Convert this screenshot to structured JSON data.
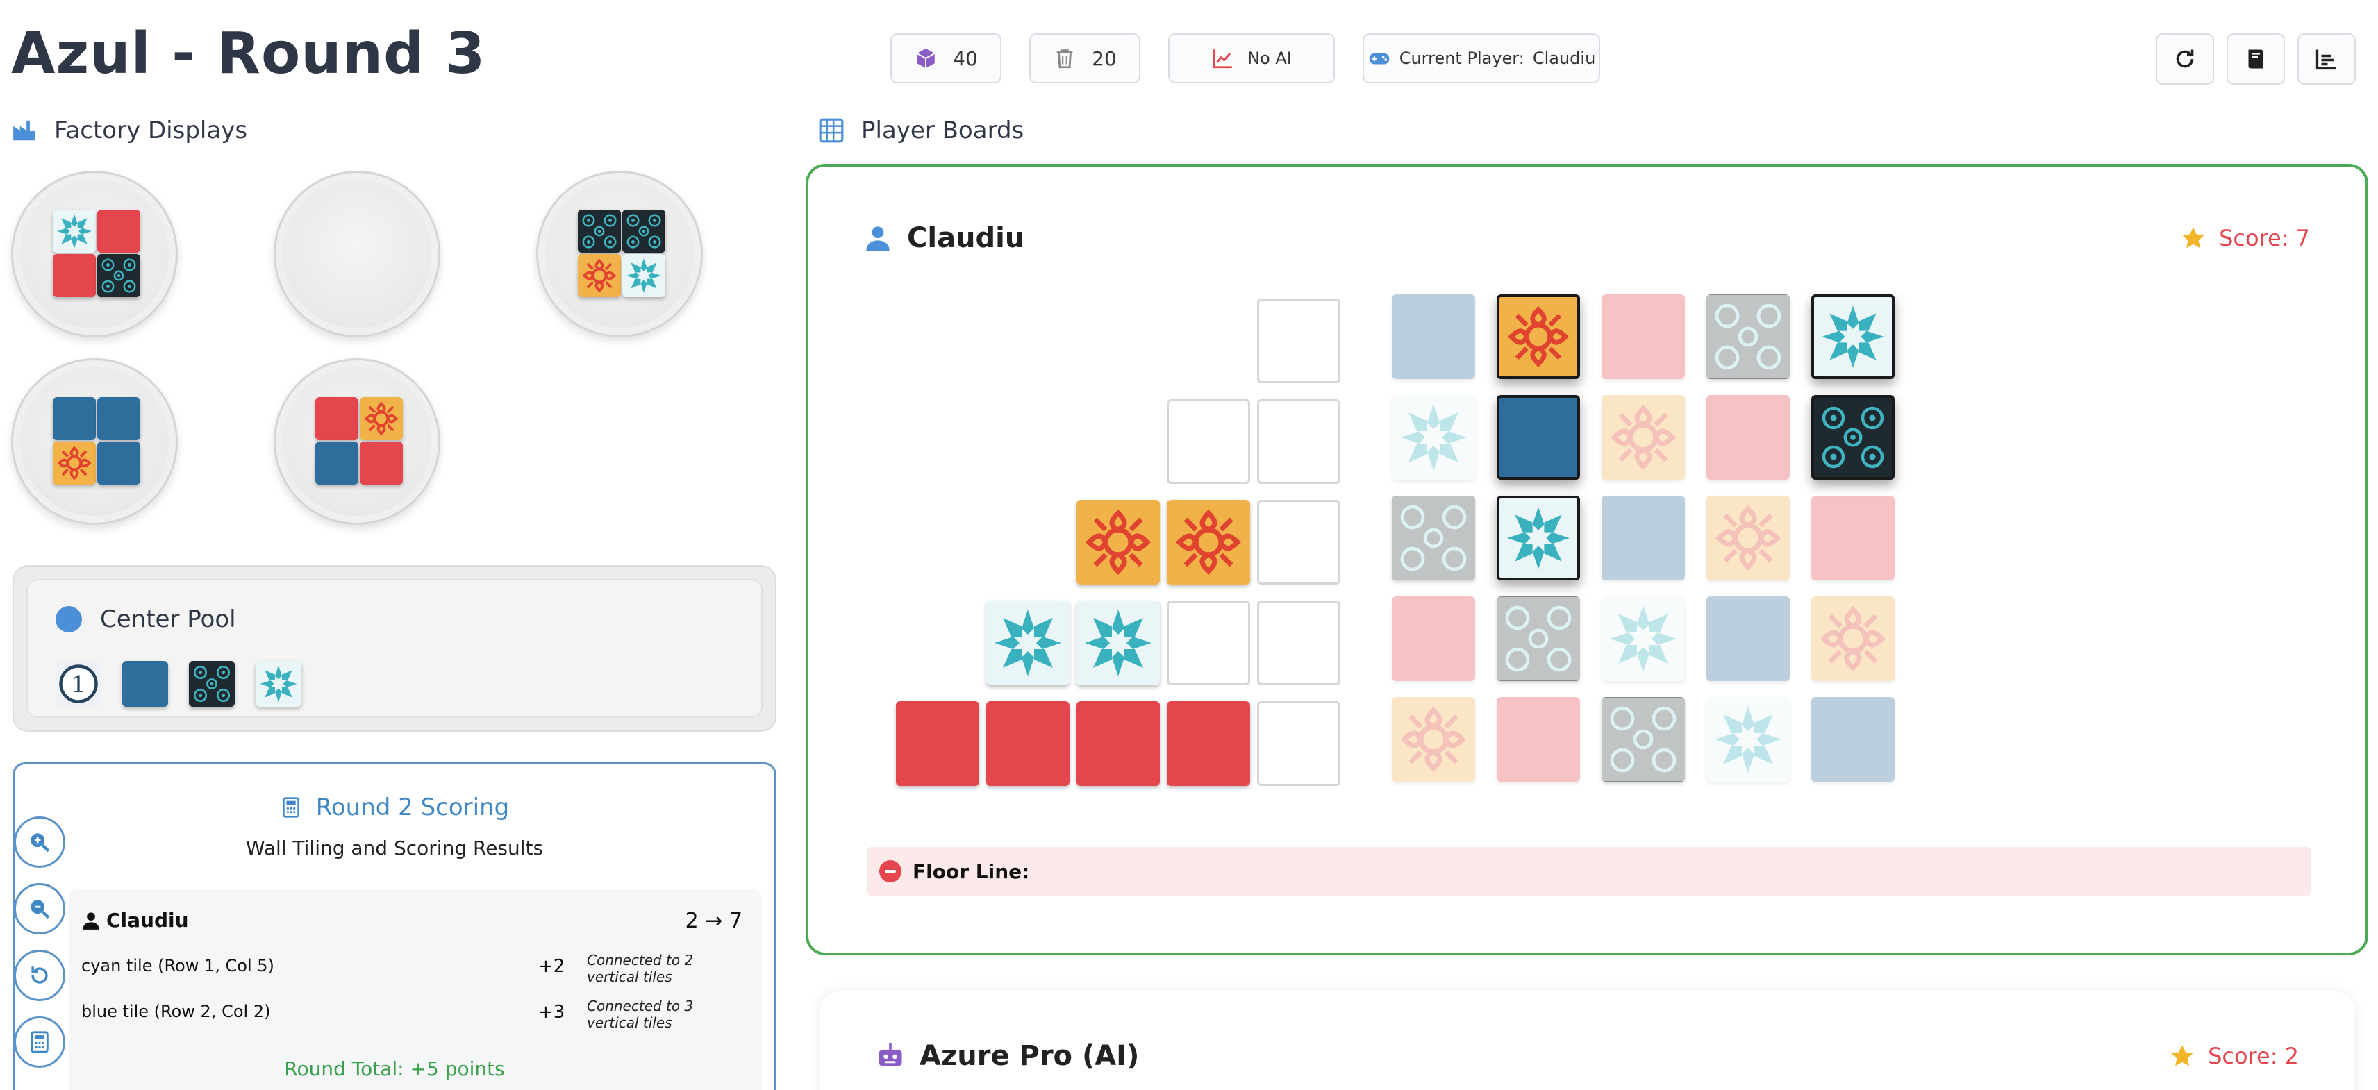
{
  "header": {
    "title": "Azul - Round 3",
    "bag_count": "40",
    "discard_count": "20",
    "ai_mode": "No AI",
    "current_player_label": "Current Player:",
    "current_player": "Claudiu"
  },
  "factories_section": {
    "title": "Factory Displays",
    "factories": [
      {
        "tiles": [
          "cyan",
          "red",
          "red",
          "black"
        ]
      },
      {
        "tiles": []
      },
      {
        "tiles": [
          "black",
          "black",
          "yellow",
          "cyan"
        ]
      },
      {
        "tiles": [
          "blue",
          "blue",
          "yellow",
          "blue"
        ]
      },
      {
        "tiles": [
          "red",
          "yellow",
          "blue",
          "red"
        ]
      }
    ]
  },
  "center_pool": {
    "title": "Center Pool",
    "first_player_marker": "1",
    "tiles": [
      "blue",
      "black",
      "cyan"
    ]
  },
  "scoring": {
    "title": "Round 2 Scoring",
    "subtitle": "Wall Tiling and Scoring Results",
    "player": "Claudiu",
    "change": "2 → 7",
    "rows": [
      {
        "label": "cyan tile (Row 1, Col 5)",
        "points": "+2",
        "note": "Connected to 2 vertical tiles"
      },
      {
        "label": "blue tile (Row 2, Col 2)",
        "points": "+3",
        "note": "Connected to 3 vertical tiles"
      }
    ],
    "total": "Round Total: +5 points"
  },
  "boards_section": {
    "title": "Player Boards"
  },
  "player_board": {
    "name": "Claudiu",
    "score": "Score: 7",
    "pattern_lines": [
      {
        "capacity": 1,
        "tiles": []
      },
      {
        "capacity": 2,
        "tiles": []
      },
      {
        "capacity": 3,
        "tiles": [
          "yellow",
          "yellow"
        ]
      },
      {
        "capacity": 4,
        "tiles": [
          "cyan",
          "cyan"
        ]
      },
      {
        "capacity": 5,
        "tiles": [
          "red",
          "red",
          "red",
          "red"
        ]
      }
    ],
    "wall": [
      [
        {
          "c": "blue",
          "p": false
        },
        {
          "c": "yellow",
          "p": true
        },
        {
          "c": "red",
          "p": false
        },
        {
          "c": "black",
          "p": false
        },
        {
          "c": "cyan",
          "p": true
        }
      ],
      [
        {
          "c": "cyan",
          "p": false
        },
        {
          "c": "blue",
          "p": true
        },
        {
          "c": "yellow",
          "p": false
        },
        {
          "c": "red",
          "p": false
        },
        {
          "c": "black",
          "p": true
        }
      ],
      [
        {
          "c": "black",
          "p": false
        },
        {
          "c": "cyan",
          "p": true
        },
        {
          "c": "blue",
          "p": false
        },
        {
          "c": "yellow",
          "p": false
        },
        {
          "c": "red",
          "p": false
        }
      ],
      [
        {
          "c": "red",
          "p": false
        },
        {
          "c": "black",
          "p": false
        },
        {
          "c": "cyan",
          "p": false
        },
        {
          "c": "blue",
          "p": false
        },
        {
          "c": "yellow",
          "p": false
        }
      ],
      [
        {
          "c": "yellow",
          "p": false
        },
        {
          "c": "red",
          "p": false
        },
        {
          "c": "black",
          "p": false
        },
        {
          "c": "cyan",
          "p": false
        },
        {
          "c": "blue",
          "p": false
        }
      ]
    ],
    "floor_label": "Floor Line:"
  },
  "second_board": {
    "name": "Azure Pro (AI)",
    "score": "Score: 2"
  },
  "colors": {
    "accent_blue": "#3f88c5",
    "board_border": "#4bab55",
    "score_red": "#e5454c",
    "total_green": "#3aa04a"
  }
}
